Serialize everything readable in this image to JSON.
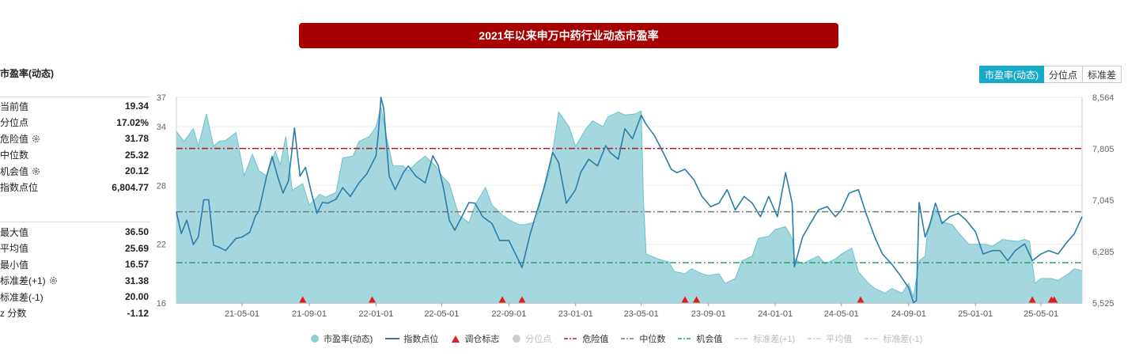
{
  "title": "2021年以来申万中药行业动态市盈率",
  "panel": {
    "header": "市盈率(动态)",
    "stats_top": [
      {
        "label": "当前值",
        "value": "19.34",
        "gear": false
      },
      {
        "label": "分位点",
        "value": "17.02%",
        "gear": false
      },
      {
        "label": "危险值",
        "value": "31.78",
        "gear": true
      },
      {
        "label": "中位数",
        "value": "25.32",
        "gear": false
      },
      {
        "label": "机会值",
        "value": "20.12",
        "gear": true
      },
      {
        "label": "指数点位",
        "value": "6,804.77",
        "gear": false
      }
    ],
    "stats_bottom": [
      {
        "label": "最大值",
        "value": "36.50",
        "gear": false
      },
      {
        "label": "平均值",
        "value": "25.69",
        "gear": false
      },
      {
        "label": "最小值",
        "value": "16.57",
        "gear": false
      },
      {
        "label": "标准差(+1)",
        "value": "31.38",
        "gear": true
      },
      {
        "label": "标准差(-1)",
        "value": "20.00",
        "gear": false
      },
      {
        "label": "z 分数",
        "value": "-1.12",
        "gear": false
      }
    ]
  },
  "tabs": [
    {
      "label": "市盈率(动态)",
      "active": true
    },
    {
      "label": "分位点",
      "active": false
    },
    {
      "label": "标准差",
      "active": false
    }
  ],
  "colors": {
    "pe_fill": "#9fd6dc",
    "pe_stroke": "#6cc3cc",
    "index_line": "#2a7da8",
    "danger": "#c0161b",
    "median": "#777777",
    "chance": "#2aa36b",
    "marker": "#e21a1a",
    "grid": "#eeeeee"
  },
  "chart_data": {
    "type": "area",
    "left_axis": {
      "min": 16,
      "max": 37,
      "ticks": [
        16,
        22,
        28,
        34,
        37
      ]
    },
    "right_axis": {
      "min": 5525,
      "max": 8564,
      "ticks": [
        "5,525",
        "6,285",
        "7,045",
        "7,805",
        "8,564"
      ]
    },
    "x_ticks": [
      "21-05-01",
      "21-09-01",
      "22-01-01",
      "22-05-01",
      "22-09-01",
      "23-01-01",
      "23-05-01",
      "23-09-01",
      "24-01-01",
      "24-05-01",
      "24-09-01",
      "25-01-01",
      "25-05-01"
    ],
    "x_range": [
      "2021-01-01",
      "2025-07-15"
    ],
    "reference_lines": {
      "danger": 31.78,
      "median": 25.32,
      "chance": 20.12
    },
    "series": [
      {
        "name": "市盈率(动态)",
        "kind": "area",
        "x": [
          "2021-01-01",
          "2021-01-15",
          "2021-02-01",
          "2021-02-10",
          "2021-02-25",
          "2021-03-10",
          "2021-03-20",
          "2021-04-01",
          "2021-04-20",
          "2021-05-05",
          "2021-05-20",
          "2021-06-01",
          "2021-06-15",
          "2021-07-01",
          "2021-07-10",
          "2021-07-20",
          "2021-08-01",
          "2021-08-20",
          "2021-09-01",
          "2021-09-20",
          "2021-10-01",
          "2021-10-20",
          "2021-11-01",
          "2021-11-20",
          "2021-12-01",
          "2021-12-20",
          "2022-01-01",
          "2022-01-10",
          "2022-01-20",
          "2022-02-01",
          "2022-02-20",
          "2022-03-01",
          "2022-03-20",
          "2022-04-01",
          "2022-04-20",
          "2022-05-01",
          "2022-05-15",
          "2022-06-01",
          "2022-06-20",
          "2022-07-01",
          "2022-07-20",
          "2022-08-01",
          "2022-08-20",
          "2022-09-01",
          "2022-09-20",
          "2022-10-01",
          "2022-10-20",
          "2022-11-01",
          "2022-11-15",
          "2022-12-01",
          "2022-12-20",
          "2023-01-01",
          "2023-01-20",
          "2023-02-01",
          "2023-02-20",
          "2023-03-01",
          "2023-03-20",
          "2023-04-01",
          "2023-04-20",
          "2023-05-01",
          "2023-05-05",
          "2023-05-10",
          "2023-06-01",
          "2023-06-20",
          "2023-07-01",
          "2023-07-20",
          "2023-08-01",
          "2023-08-20",
          "2023-09-01",
          "2023-09-20",
          "2023-10-01",
          "2023-10-20",
          "2023-11-01",
          "2023-11-20",
          "2023-12-01",
          "2023-12-20",
          "2024-01-01",
          "2024-01-20",
          "2024-02-01",
          "2024-02-05",
          "2024-02-20",
          "2024-03-01",
          "2024-03-20",
          "2024-04-01",
          "2024-04-20",
          "2024-05-01",
          "2024-05-20",
          "2024-06-01",
          "2024-06-20",
          "2024-07-01",
          "2024-07-20",
          "2024-08-01",
          "2024-08-20",
          "2024-09-01",
          "2024-09-10",
          "2024-09-20",
          "2024-10-01",
          "2024-10-05",
          "2024-10-20",
          "2024-11-01",
          "2024-11-20",
          "2024-12-01",
          "2024-12-20",
          "2025-01-01",
          "2025-01-20",
          "2025-02-01",
          "2025-02-20",
          "2025-03-01",
          "2025-03-20",
          "2025-04-01",
          "2025-04-10",
          "2025-04-20",
          "2025-05-01",
          "2025-05-20",
          "2025-06-01",
          "2025-06-20",
          "2025-07-01",
          "2025-07-15"
        ],
        "values": [
          33.5,
          32.5,
          33.8,
          32.0,
          35.3,
          32.0,
          32.5,
          32.6,
          33.4,
          29.0,
          31.2,
          29.5,
          29.0,
          31.5,
          30.1,
          33.0,
          27.5,
          28.2,
          26.0,
          27.1,
          26.8,
          27.3,
          30.8,
          31.0,
          32.5,
          33.0,
          34.0,
          36.0,
          33.0,
          30.0,
          30.0,
          29.5,
          30.5,
          31.0,
          30.0,
          29.0,
          28.2,
          25.0,
          24.2,
          26.0,
          27.8,
          26.0,
          25.0,
          24.5,
          24.0,
          24.0,
          24.3,
          27.0,
          29.6,
          35.5,
          34.0,
          32.0,
          33.8,
          34.6,
          34.0,
          35.0,
          35.5,
          35.2,
          35.3,
          35.6,
          26.5,
          21.0,
          20.5,
          20.2,
          19.2,
          19.0,
          19.5,
          19.0,
          18.8,
          19.0,
          18.0,
          18.5,
          20.3,
          20.8,
          22.6,
          22.8,
          23.5,
          23.8,
          22.6,
          20.5,
          20.0,
          20.3,
          20.8,
          20.0,
          20.5,
          21.0,
          21.6,
          19.2,
          18.0,
          17.5,
          17.0,
          17.5,
          17.0,
          18.0,
          16.6,
          20.3,
          20.8,
          23.0,
          25.6,
          24.3,
          24.0,
          23.2,
          22.0,
          22.0,
          22.0,
          21.8,
          22.5,
          22.4,
          22.3,
          22.5,
          22.3,
          18.0,
          18.5,
          18.5,
          18.3,
          19.0,
          19.5,
          19.3
        ]
      },
      {
        "name": "指数点位",
        "kind": "line",
        "x": [
          "2021-01-01",
          "2021-01-10",
          "2021-01-20",
          "2021-02-01",
          "2021-02-10",
          "2021-02-20",
          "2021-03-01",
          "2021-03-10",
          "2021-03-20",
          "2021-04-01",
          "2021-04-20",
          "2021-05-01",
          "2021-05-15",
          "2021-05-25",
          "2021-06-01",
          "2021-06-15",
          "2021-06-25",
          "2021-07-05",
          "2021-07-15",
          "2021-07-25",
          "2021-08-05",
          "2021-08-15",
          "2021-08-25",
          "2021-09-05",
          "2021-09-15",
          "2021-09-25",
          "2021-10-05",
          "2021-10-20",
          "2021-11-01",
          "2021-11-15",
          "2021-12-01",
          "2021-12-15",
          "2022-01-01",
          "2022-01-05",
          "2022-01-10",
          "2022-01-15",
          "2022-01-25",
          "2022-02-05",
          "2022-02-20",
          "2022-03-01",
          "2022-03-15",
          "2022-04-01",
          "2022-04-15",
          "2022-04-25",
          "2022-05-05",
          "2022-05-15",
          "2022-05-25",
          "2022-06-05",
          "2022-06-20",
          "2022-07-01",
          "2022-07-15",
          "2022-08-01",
          "2022-08-15",
          "2022-09-01",
          "2022-09-10",
          "2022-09-25",
          "2022-10-10",
          "2022-10-25",
          "2022-11-05",
          "2022-11-20",
          "2022-12-01",
          "2022-12-15",
          "2023-01-01",
          "2023-01-10",
          "2023-01-25",
          "2023-02-10",
          "2023-02-25",
          "2023-03-05",
          "2023-03-20",
          "2023-04-01",
          "2023-04-15",
          "2023-05-01",
          "2023-05-10",
          "2023-05-25",
          "2023-06-10",
          "2023-06-25",
          "2023-07-05",
          "2023-07-20",
          "2023-08-05",
          "2023-08-20",
          "2023-09-05",
          "2023-09-20",
          "2023-10-05",
          "2023-10-20",
          "2023-11-05",
          "2023-11-20",
          "2023-12-05",
          "2023-12-20",
          "2024-01-05",
          "2024-01-20",
          "2024-02-01",
          "2024-02-05",
          "2024-02-20",
          "2024-03-05",
          "2024-03-20",
          "2024-04-05",
          "2024-04-20",
          "2024-05-01",
          "2024-05-15",
          "2024-06-01",
          "2024-06-15",
          "2024-07-01",
          "2024-07-15",
          "2024-08-01",
          "2024-08-15",
          "2024-09-01",
          "2024-09-10",
          "2024-09-15",
          "2024-09-20",
          "2024-10-01",
          "2024-10-10",
          "2024-10-20",
          "2024-11-01",
          "2024-11-15",
          "2024-12-01",
          "2024-12-15",
          "2025-01-01",
          "2025-01-15",
          "2025-02-01",
          "2025-02-15",
          "2025-03-01",
          "2025-03-15",
          "2025-04-01",
          "2025-04-15",
          "2025-05-01",
          "2025-05-15",
          "2025-06-01",
          "2025-06-15",
          "2025-07-01",
          "2025-07-15"
        ],
        "values": [
          6870,
          6550,
          6750,
          6390,
          6500,
          7050,
          7050,
          6380,
          6350,
          6300,
          6480,
          6500,
          6570,
          6800,
          6890,
          7400,
          7690,
          7400,
          7150,
          7330,
          8110,
          7400,
          7530,
          7150,
          6850,
          7010,
          7000,
          7060,
          7230,
          7100,
          7300,
          7430,
          7700,
          8000,
          8564,
          8400,
          7400,
          7200,
          7450,
          7550,
          7400,
          7300,
          7700,
          7550,
          7200,
          6750,
          6600,
          6770,
          7010,
          7000,
          6800,
          6700,
          6450,
          6450,
          6300,
          6050,
          6550,
          6950,
          7250,
          7750,
          7600,
          7000,
          7200,
          7450,
          7650,
          7550,
          7850,
          7750,
          7650,
          8100,
          7950,
          8300,
          8164,
          8000,
          7750,
          7500,
          7450,
          7500,
          7350,
          7100,
          6950,
          7000,
          7200,
          6900,
          7100,
          7000,
          6800,
          7100,
          6800,
          7450,
          7000,
          6060,
          6500,
          6700,
          6900,
          6950,
          6800,
          6900,
          7150,
          7200,
          6850,
          6500,
          6250,
          6100,
          5950,
          5750,
          5530,
          5560,
          7010,
          6500,
          6700,
          7000,
          6700,
          6800,
          6850,
          6750,
          6580,
          6250,
          6300,
          6300,
          6150,
          6300,
          6400,
          6150,
          6250,
          6300,
          6250,
          6400,
          6550,
          6800
        ]
      }
    ],
    "markers": {
      "name": "调仓标志",
      "x": [
        "2021-08-20",
        "2021-12-25",
        "2022-08-20",
        "2022-09-25",
        "2023-07-20",
        "2023-08-10",
        "2024-06-05",
        "2025-04-15",
        "2025-05-20",
        "2025-05-25"
      ]
    },
    "legend": [
      {
        "label": "市盈率(动态)",
        "kind": "dot",
        "color": "#8ccfd6",
        "active": true
      },
      {
        "label": "指数点位",
        "kind": "line",
        "color": "#2a7da8",
        "active": true
      },
      {
        "label": "调仓标志",
        "kind": "triangle",
        "color": "#e21a1a",
        "active": true
      },
      {
        "label": "分位点",
        "kind": "dot",
        "color": "#cccccc",
        "active": false
      },
      {
        "label": "危险值",
        "kind": "dashdot",
        "color": "#c0161b",
        "active": true
      },
      {
        "label": "中位数",
        "kind": "dashdot",
        "color": "#777777",
        "active": true
      },
      {
        "label": "机会值",
        "kind": "dashdot",
        "color": "#2aa36b",
        "active": true
      },
      {
        "label": "标准差(+1)",
        "kind": "dashdot",
        "color": "#cccccc",
        "active": false
      },
      {
        "label": "平均值",
        "kind": "dashdot",
        "color": "#cccccc",
        "active": false
      },
      {
        "label": "标准差(-1)",
        "kind": "dashdot",
        "color": "#cccccc",
        "active": false
      }
    ]
  }
}
